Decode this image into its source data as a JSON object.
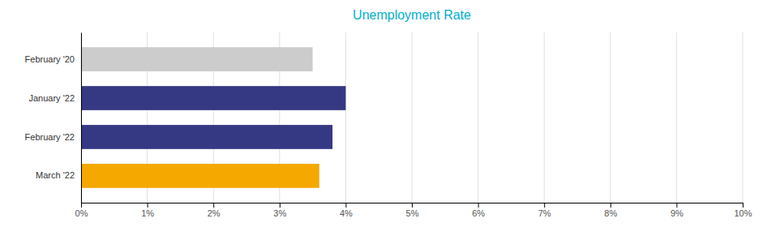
{
  "chart_data": {
    "type": "bar",
    "orientation": "horizontal",
    "title": "Unemployment Rate",
    "categories": [
      "February '20",
      "January '22",
      "February '22",
      "March '22"
    ],
    "values": [
      3.5,
      4.0,
      3.8,
      3.6
    ],
    "colors": [
      "#cccccc",
      "#353882",
      "#353882",
      "#f5a800"
    ],
    "xlim": [
      0,
      10
    ],
    "xticks": [
      {
        "value": 0,
        "label": "0%"
      },
      {
        "value": 1,
        "label": "1%"
      },
      {
        "value": 2,
        "label": "2%"
      },
      {
        "value": 3,
        "label": "3%"
      },
      {
        "value": 4,
        "label": "4%"
      },
      {
        "value": 5,
        "label": "5%"
      },
      {
        "value": 6,
        "label": "6%"
      },
      {
        "value": 7,
        "label": "7%"
      },
      {
        "value": 8,
        "label": "8%"
      },
      {
        "value": 9,
        "label": "9%"
      },
      {
        "value": 10,
        "label": "10%"
      }
    ],
    "grid": true
  }
}
